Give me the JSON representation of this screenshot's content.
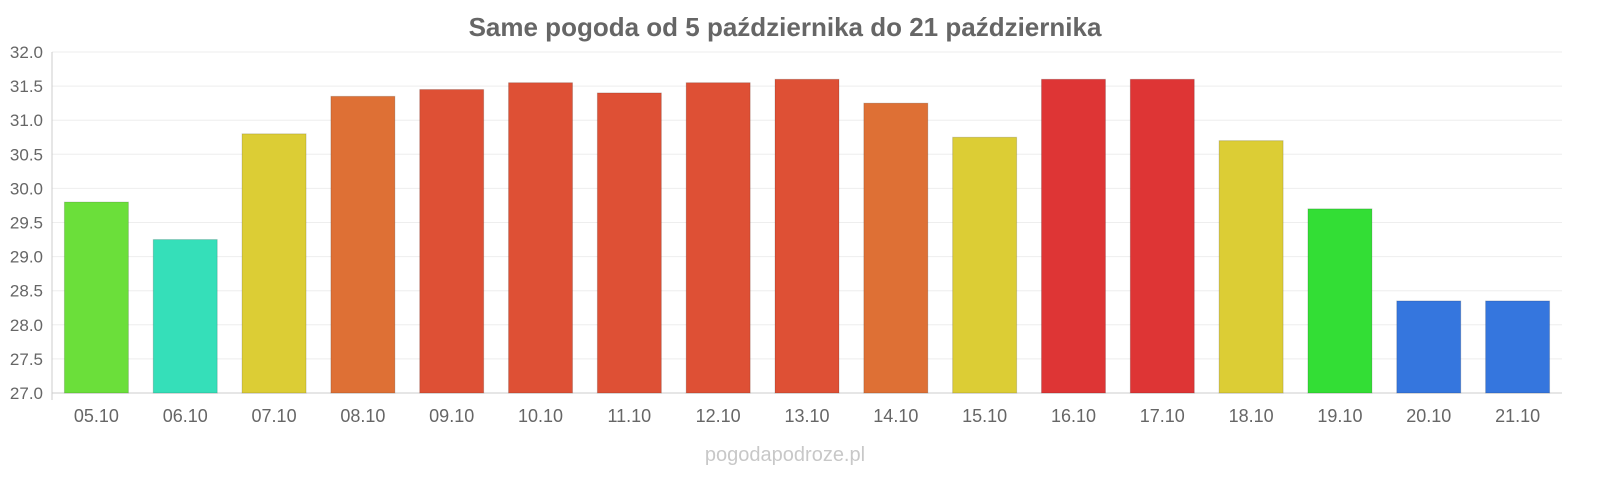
{
  "chart_data": {
    "type": "bar",
    "title": "Same pogoda od 5 października do 21 października",
    "xlabel": "",
    "ylabel": "",
    "ylim": [
      27.0,
      32.0
    ],
    "yticks": [
      "27.0",
      "27.5",
      "28.0",
      "28.5",
      "29.0",
      "29.5",
      "30.0",
      "30.5",
      "31.0",
      "31.5",
      "32.0"
    ],
    "grid": true,
    "categories": [
      "05.10",
      "06.10",
      "07.10",
      "08.10",
      "09.10",
      "10.10",
      "11.10",
      "12.10",
      "13.10",
      "14.10",
      "15.10",
      "16.10",
      "17.10",
      "18.10",
      "19.10",
      "20.10",
      "21.10"
    ],
    "values": [
      29.8,
      29.25,
      30.8,
      31.35,
      31.45,
      31.55,
      31.4,
      31.55,
      31.6,
      31.25,
      30.75,
      31.6,
      31.6,
      30.7,
      29.7,
      28.35,
      28.35
    ],
    "colors": [
      "#6bdf3a",
      "#35dfb9",
      "#dccd35",
      "#de7035",
      "#de5035",
      "#de5035",
      "#de5035",
      "#de5035",
      "#de5035",
      "#de7035",
      "#dccd35",
      "#de3535",
      "#de3535",
      "#dccd35",
      "#33de35",
      "#3576de",
      "#3576de"
    ]
  },
  "watermark": "pogodapodroze.pl"
}
